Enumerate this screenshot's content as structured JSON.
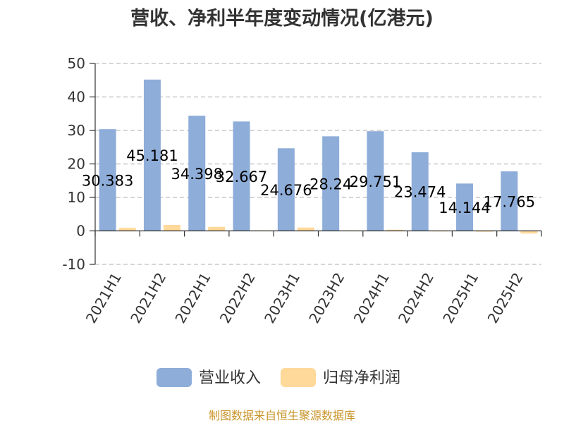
{
  "source_note": "制图数据来自恒生聚源数据库",
  "colors": {
    "revenue": "#8eadd9",
    "net_profit": "#ffd99a",
    "grid": "#c8c8c8",
    "axis": "#333333",
    "title": "#333333",
    "source": "#c9952b"
  },
  "chart_data": {
    "type": "bar",
    "title": "营收、净利半年度变动情况(亿港元)",
    "categories": [
      "2021H1",
      "2021H2",
      "2022H1",
      "2022H2",
      "2023H1",
      "2023H2",
      "2024H1",
      "2024H2",
      "2025H1",
      "2025H2"
    ],
    "series": [
      {
        "name": "营业收入",
        "values": [
          30.383,
          45.181,
          34.398,
          32.667,
          24.676,
          28.24,
          29.751,
          23.474,
          14.144,
          17.765
        ],
        "labels": [
          "30.383",
          "45.181",
          "34.398",
          "32.667",
          "24.676",
          "28.24",
          "29.751",
          "23.474",
          "14.144",
          "17.765"
        ]
      },
      {
        "name": "归母净利润",
        "values": [
          0.9,
          1.8,
          1.2,
          0.15,
          1.0,
          0.15,
          0.35,
          0.05,
          -0.25,
          -0.8
        ]
      }
    ],
    "y_ticks": [
      "50",
      "40",
      "30",
      "20",
      "10",
      "0",
      "-10"
    ],
    "ylim": [
      -10,
      50
    ],
    "grid": true,
    "legend": "bottom-center"
  }
}
